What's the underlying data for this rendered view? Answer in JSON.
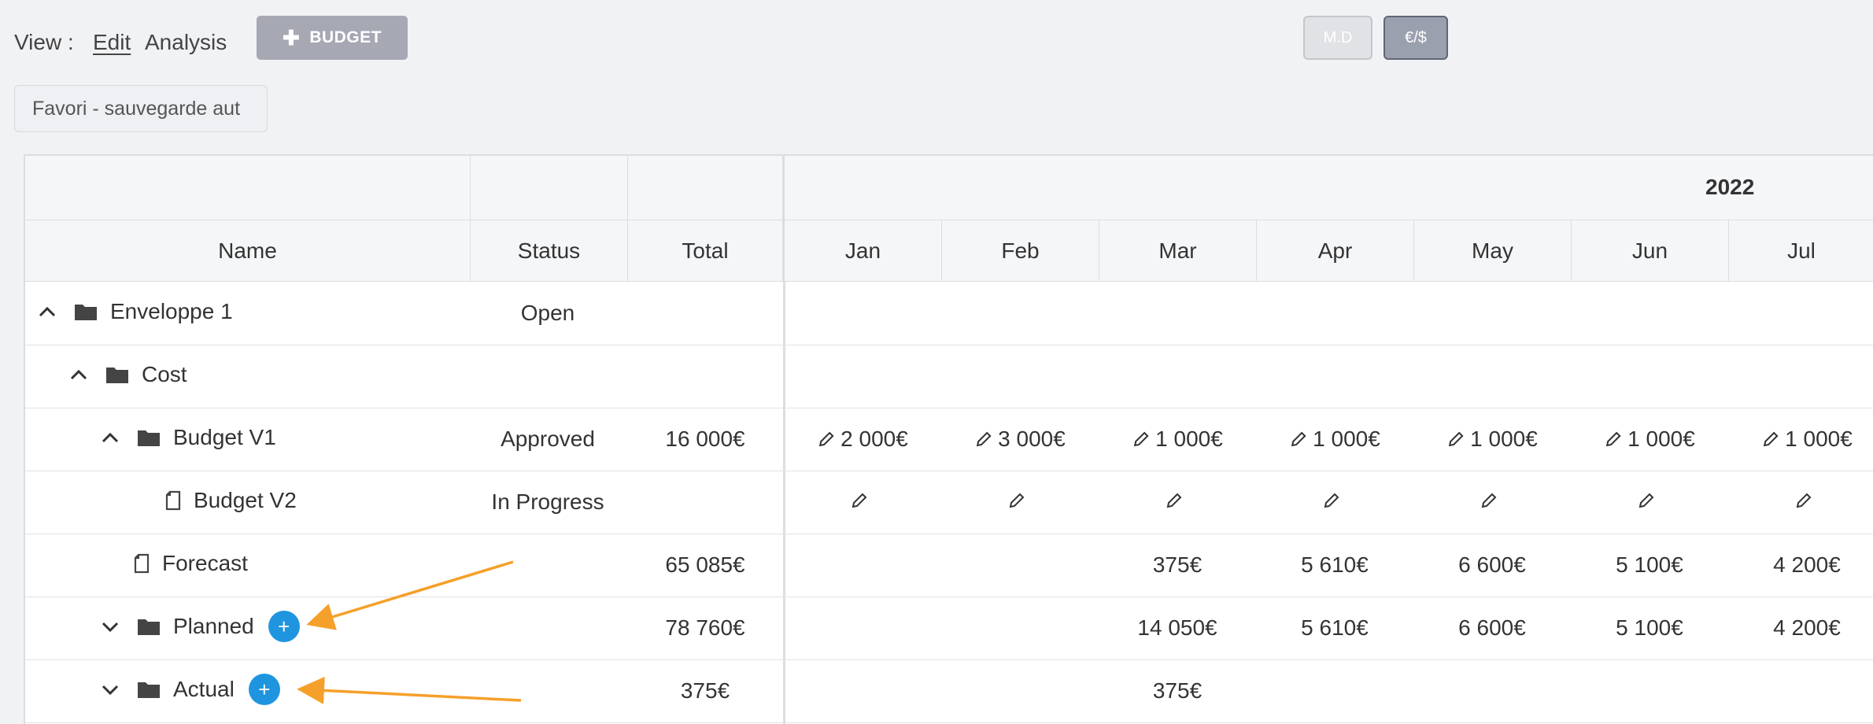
{
  "toolbar": {
    "view_label": "View :",
    "view_edit": "Edit",
    "view_analysis": "Analysis",
    "budget_button": "BUDGET",
    "md_button": "M.D",
    "currency_button": "€/$",
    "favorite": "Favori - sauvegarde aut"
  },
  "grid": {
    "year": "2022",
    "columns": {
      "name": "Name",
      "status": "Status",
      "total": "Total",
      "months": [
        "Jan",
        "Feb",
        "Mar",
        "Apr",
        "May",
        "Jun",
        "Jul"
      ]
    },
    "rows": [
      {
        "name": "Enveloppe 1",
        "status": "Open",
        "total": "",
        "months": [
          "",
          "",
          "",
          "",
          "",
          "",
          ""
        ]
      },
      {
        "name": "Cost",
        "status": "",
        "total": "",
        "months": [
          "",
          "",
          "",
          "",
          "",
          "",
          ""
        ]
      },
      {
        "name": "Budget V1",
        "status": "Approved",
        "total": "16 000€",
        "months": [
          "2 000€",
          "3 000€",
          "1 000€",
          "1 000€",
          "1 000€",
          "1 000€",
          "1 000€"
        ]
      },
      {
        "name": "Budget V2",
        "status": "In Progress",
        "total": "",
        "months": [
          "",
          "",
          "",
          "",
          "",
          "",
          ""
        ]
      },
      {
        "name": "Forecast",
        "status": "",
        "total": "65 085€",
        "months": [
          "",
          "",
          "375€",
          "5 610€",
          "6 600€",
          "5 100€",
          "4 200€"
        ]
      },
      {
        "name": "Planned",
        "status": "",
        "total": "78 760€",
        "months": [
          "",
          "",
          "14 050€",
          "5 610€",
          "6 600€",
          "5 100€",
          "4 200€"
        ]
      },
      {
        "name": "Actual",
        "status": "",
        "total": "375€",
        "months": [
          "",
          "",
          "375€",
          "",
          "",
          "",
          ""
        ]
      }
    ]
  },
  "colors": {
    "accent_blue": "#1f95e0",
    "arrow_orange": "#f5a02a"
  }
}
